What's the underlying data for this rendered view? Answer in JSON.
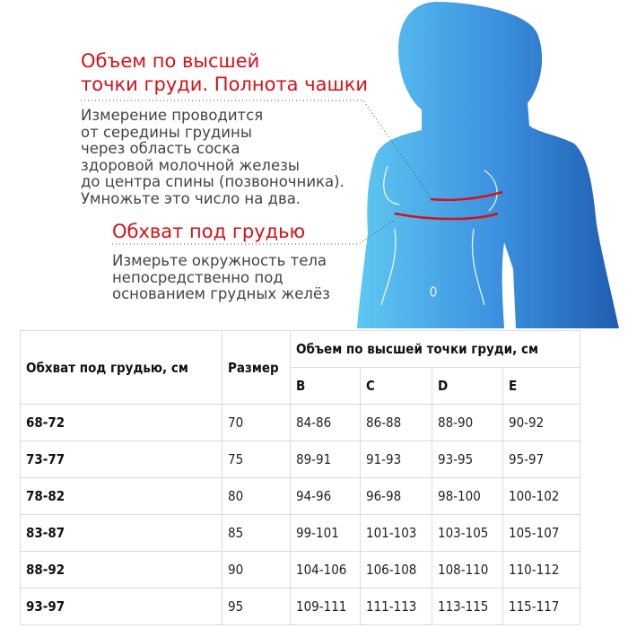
{
  "illustration": {
    "cup_title_line1": "Объем по высшей",
    "cup_title_line2": "точки груди. Полнота чашки",
    "cup_text": [
      "Измерение проводится",
      "от середины грудины",
      "через область соска",
      "здоровой молочной железы",
      "до центра спины (позвоночника).",
      "Умножьте это число на два."
    ],
    "underbust_title": "Обхват под грудью",
    "underbust_text": [
      "Измерьте окружность тела",
      "непосредственно под",
      "основанием грудных желёз"
    ],
    "colors": {
      "accent_red": "#d6101a",
      "figure_light": "#5ec8f2",
      "figure_dark": "#1f5db0"
    }
  },
  "table": {
    "col_underbust": "Обхват под грудью, см",
    "col_size": "Размер",
    "col_bust_group": "Объем по высшей точки груди, см",
    "cups": [
      "B",
      "C",
      "D",
      "E"
    ],
    "rows": [
      {
        "underbust": "68-72",
        "size": "70",
        "values": [
          "84-86",
          "86-88",
          "88-90",
          "90-92"
        ]
      },
      {
        "underbust": "73-77",
        "size": "75",
        "values": [
          "89-91",
          "91-93",
          "93-95",
          "95-97"
        ]
      },
      {
        "underbust": "78-82",
        "size": "80",
        "values": [
          "94-96",
          "96-98",
          "98-100",
          "100-102"
        ]
      },
      {
        "underbust": "83-87",
        "size": "85",
        "values": [
          "99-101",
          "101-103",
          "103-105",
          "105-107"
        ]
      },
      {
        "underbust": "88-92",
        "size": "90",
        "values": [
          "104-106",
          "106-108",
          "108-110",
          "110-112"
        ]
      },
      {
        "underbust": "93-97",
        "size": "95",
        "values": [
          "109-111",
          "111-113",
          "113-115",
          "115-117"
        ]
      }
    ]
  }
}
